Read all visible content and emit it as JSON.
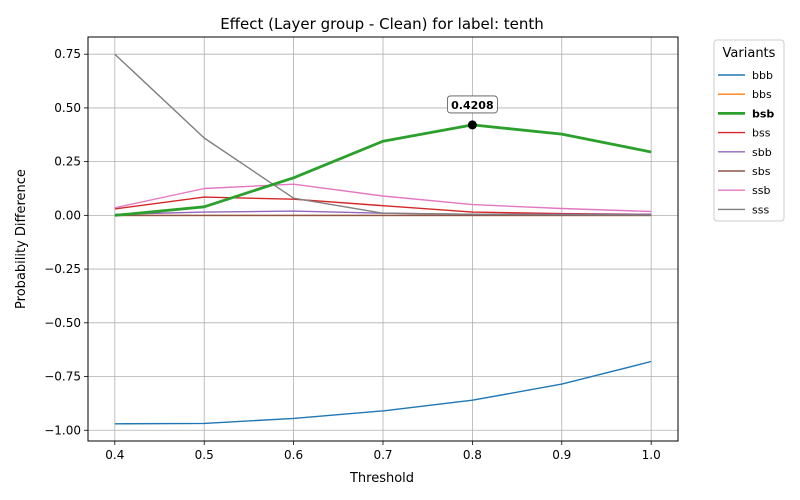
{
  "chart_data": {
    "type": "line",
    "title": "Effect (Layer group - Clean) for label: tenth",
    "xlabel": "Threshold",
    "ylabel": "Probability Difference",
    "x": [
      0.4,
      0.5,
      0.6,
      0.7,
      0.8,
      0.9,
      1.0
    ],
    "xlim": [
      0.37,
      1.03
    ],
    "ylim": [
      -1.05,
      0.83
    ],
    "xticks": [
      "0.4",
      "0.5",
      "0.6",
      "0.7",
      "0.8",
      "0.9",
      "1.0"
    ],
    "yticks": [
      "0.75",
      "0.50",
      "0.25",
      "0.00",
      "−0.25",
      "−0.50",
      "−0.75",
      "−1.00"
    ],
    "grid": true,
    "legend_title": "Variants",
    "legend_position": "outside-right",
    "highlight_series": "bsb",
    "annotation": {
      "series": "bsb",
      "x": 0.8,
      "y": 0.4208,
      "label": "0.4208"
    },
    "series": [
      {
        "name": "bbb",
        "color": "#1f77b4",
        "values": [
          -0.97,
          -0.968,
          -0.945,
          -0.91,
          -0.86,
          -0.785,
          -0.68
        ]
      },
      {
        "name": "bbs",
        "color": "#ff7f0e",
        "values": [
          0.0,
          0.0,
          0.0,
          0.0,
          0.0,
          0.0,
          0.0
        ]
      },
      {
        "name": "bsb",
        "color": "#2ca02c",
        "values": [
          0.0,
          0.04,
          0.175,
          0.345,
          0.4208,
          0.378,
          0.295
        ]
      },
      {
        "name": "bss",
        "color": "#d62728",
        "values": [
          0.03,
          0.085,
          0.075,
          0.045,
          0.015,
          0.008,
          0.005
        ]
      },
      {
        "name": "sbb",
        "color": "#9467bd",
        "values": [
          0.005,
          0.015,
          0.02,
          0.01,
          0.005,
          0.005,
          0.005
        ]
      },
      {
        "name": "sbs",
        "color": "#8c564b",
        "values": [
          0.0,
          0.0,
          0.0,
          0.0,
          0.0,
          0.0,
          0.0
        ]
      },
      {
        "name": "ssb",
        "color": "#e377c2",
        "values": [
          0.035,
          0.125,
          0.145,
          0.09,
          0.05,
          0.032,
          0.018
        ]
      },
      {
        "name": "sss",
        "color": "#7f7f7f",
        "values": [
          0.75,
          0.36,
          0.08,
          0.01,
          0.005,
          0.003,
          0.002
        ]
      }
    ]
  }
}
